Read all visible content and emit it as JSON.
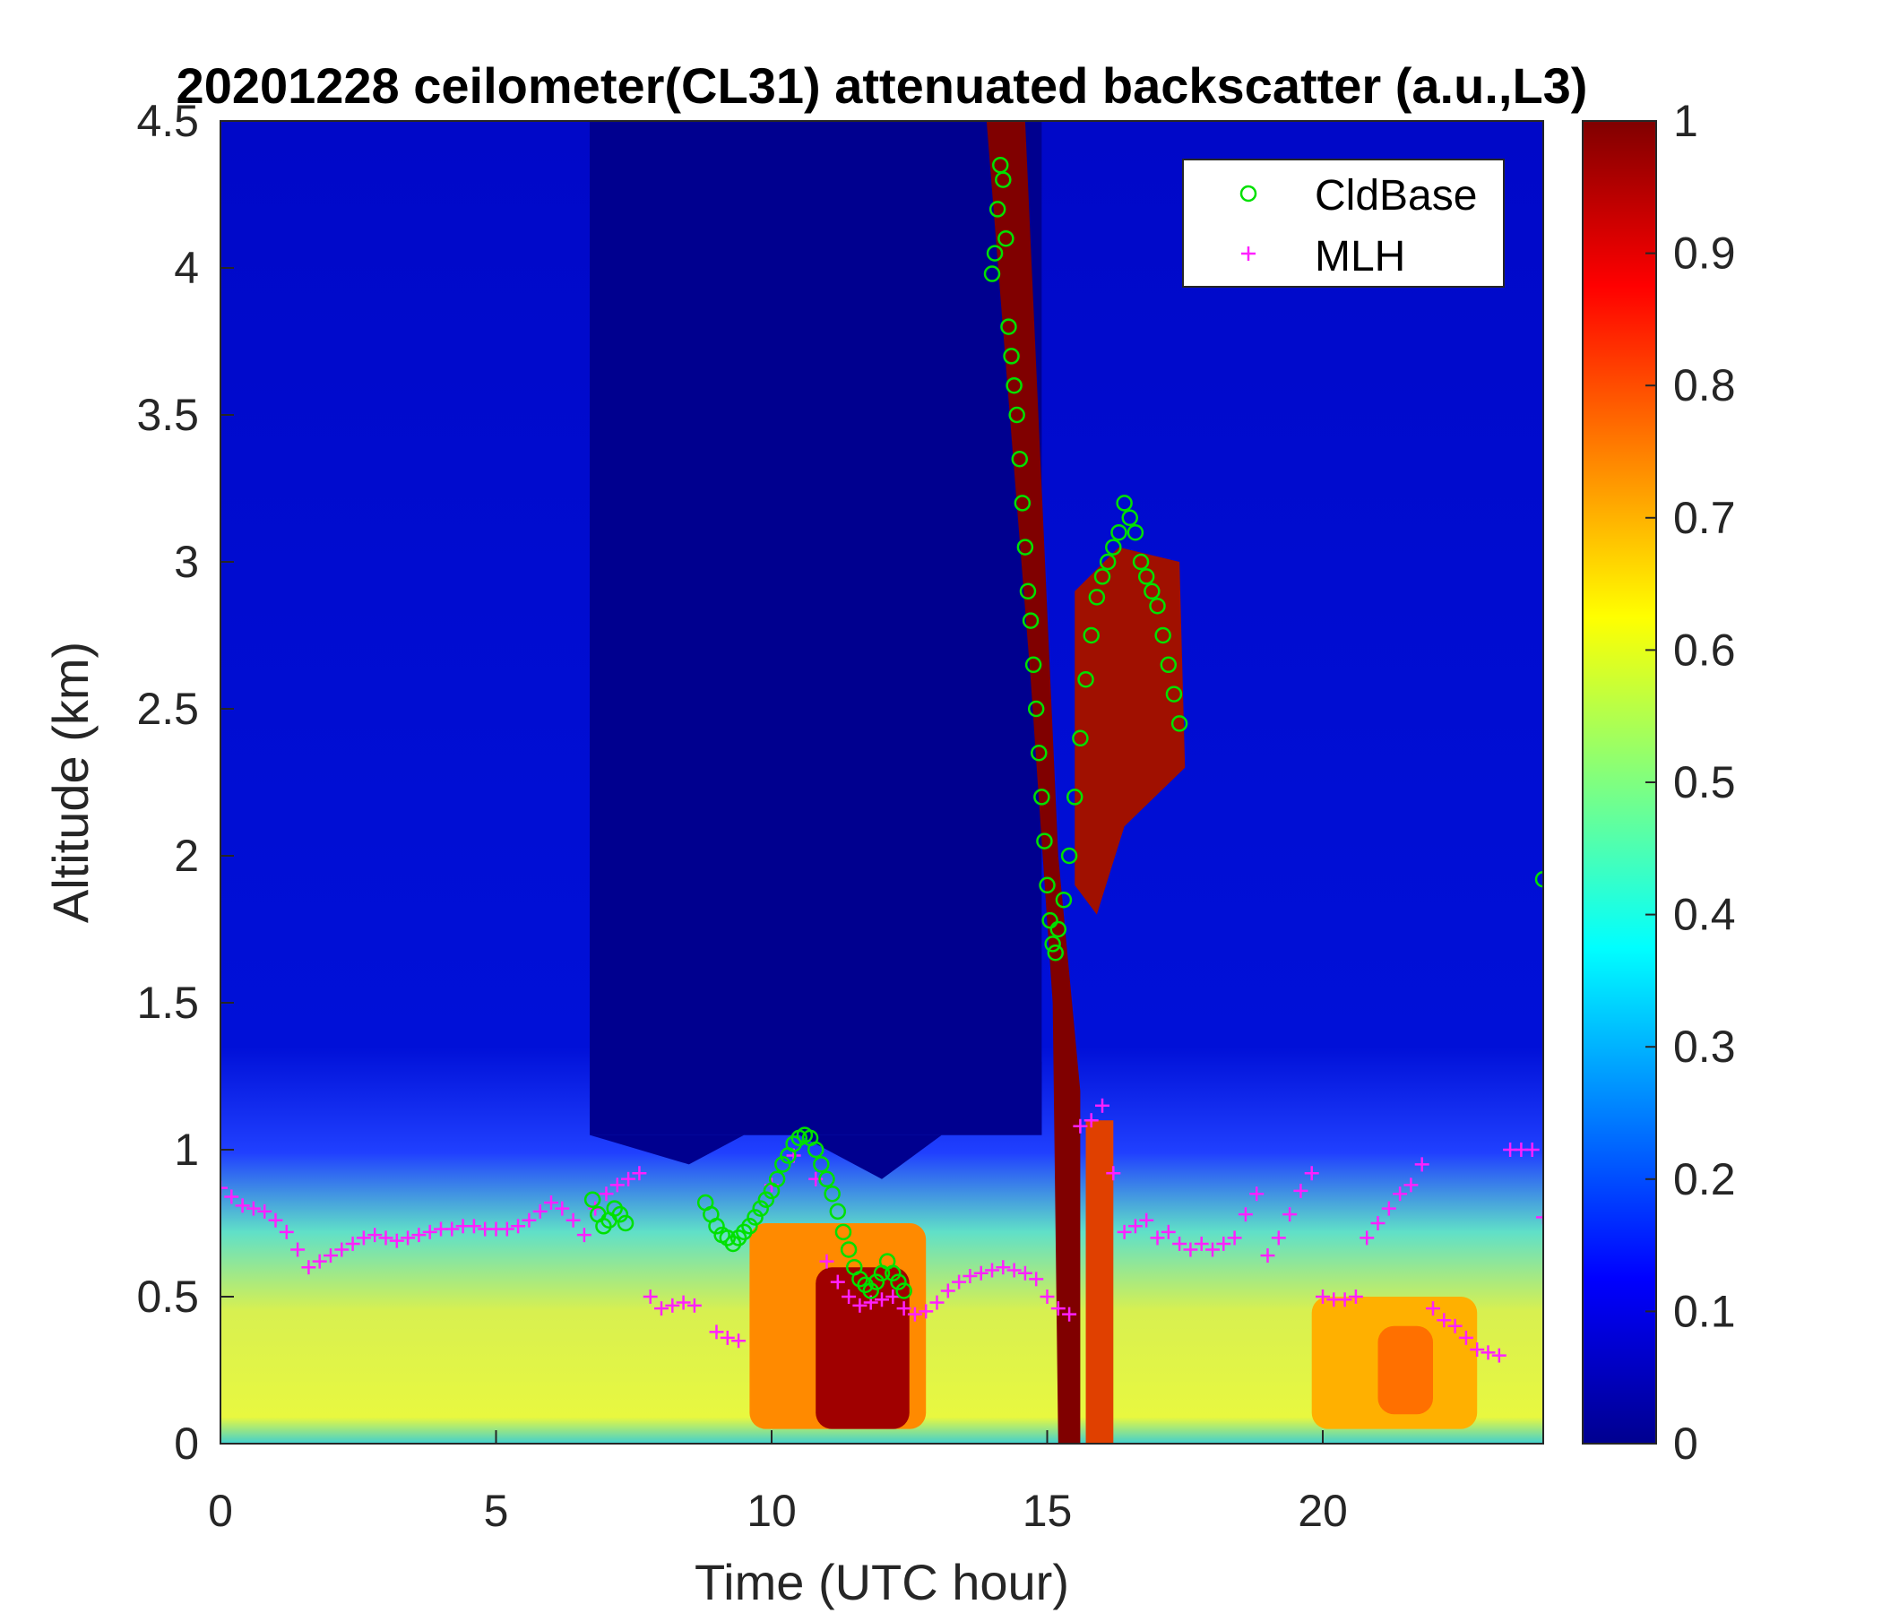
{
  "chart_data": {
    "type": "heatmap",
    "title": "20201228 ceilometer(CL31) attenuated backscatter (a.u.,L3)",
    "xlabel": "Time (UTC hour)",
    "ylabel": "Altitude (km)",
    "xlim": [
      0,
      24
    ],
    "ylim": [
      0,
      4.5
    ],
    "xticks": [
      "0",
      "5",
      "10",
      "15",
      "20"
    ],
    "yticks": [
      "0",
      "0.5",
      "1",
      "1.5",
      "2",
      "2.5",
      "3",
      "3.5",
      "4",
      "4.5"
    ],
    "colorbar": {
      "colormap": "jet",
      "clim": [
        0,
        1
      ],
      "ticks": [
        "0",
        "0.1",
        "0.2",
        "0.3",
        "0.4",
        "0.5",
        "0.6",
        "0.7",
        "0.8",
        "0.9",
        "1"
      ]
    },
    "legend": {
      "location": "top-right",
      "entries": [
        {
          "label": "CldBase",
          "marker": "circle",
          "color": "#00e000"
        },
        {
          "label": "MLH",
          "marker": "plus",
          "color": "#ff20ff"
        }
      ]
    },
    "series": [
      {
        "name": "CldBase",
        "x": [
          6.75,
          6.85,
          6.95,
          7.05,
          7.15,
          7.25,
          7.35,
          8.8,
          8.9,
          9.0,
          9.1,
          9.2,
          9.3,
          9.4,
          9.5,
          9.6,
          9.7,
          9.8,
          9.9,
          10.0,
          10.1,
          10.2,
          10.3,
          10.4,
          10.5,
          10.6,
          10.7,
          10.8,
          10.9,
          11.0,
          11.1,
          11.2,
          11.3,
          11.4,
          11.5,
          11.6,
          11.7,
          11.8,
          11.9,
          12.0,
          12.1,
          12.2,
          12.3,
          12.4,
          14.0,
          14.05,
          14.1,
          14.15,
          14.2,
          14.25,
          14.3,
          14.35,
          14.4,
          14.45,
          14.5,
          14.55,
          14.6,
          14.65,
          14.7,
          14.75,
          14.8,
          14.85,
          14.9,
          14.95,
          15.0,
          15.05,
          15.1,
          15.15,
          15.2,
          15.3,
          15.4,
          15.5,
          15.6,
          15.7,
          15.8,
          15.9,
          16.0,
          16.1,
          16.2,
          16.3,
          16.4,
          16.5,
          16.6,
          16.7,
          16.8,
          16.9,
          17.0,
          17.1,
          17.2,
          17.3,
          17.4,
          24.0
        ],
        "y": [
          0.83,
          0.78,
          0.74,
          0.76,
          0.8,
          0.78,
          0.75,
          0.82,
          0.78,
          0.74,
          0.71,
          0.7,
          0.68,
          0.7,
          0.72,
          0.74,
          0.77,
          0.8,
          0.83,
          0.86,
          0.9,
          0.95,
          0.98,
          1.02,
          1.04,
          1.05,
          1.04,
          1.0,
          0.95,
          0.9,
          0.85,
          0.79,
          0.72,
          0.66,
          0.6,
          0.56,
          0.54,
          0.52,
          0.55,
          0.58,
          0.62,
          0.58,
          0.55,
          0.52,
          3.98,
          4.05,
          4.2,
          4.35,
          4.3,
          4.1,
          3.8,
          3.7,
          3.6,
          3.5,
          3.35,
          3.2,
          3.05,
          2.9,
          2.8,
          2.65,
          2.5,
          2.35,
          2.2,
          2.05,
          1.9,
          1.78,
          1.7,
          1.67,
          1.75,
          1.85,
          2.0,
          2.2,
          2.4,
          2.6,
          2.75,
          2.88,
          2.95,
          3.0,
          3.05,
          3.1,
          3.2,
          3.15,
          3.1,
          3.0,
          2.95,
          2.9,
          2.85,
          2.75,
          2.65,
          2.55,
          2.45,
          1.92
        ]
      },
      {
        "name": "MLH",
        "x": [
          0.0,
          0.2,
          0.4,
          0.6,
          0.8,
          1.0,
          1.2,
          1.4,
          1.6,
          1.8,
          2.0,
          2.2,
          2.4,
          2.6,
          2.8,
          3.0,
          3.2,
          3.4,
          3.6,
          3.8,
          4.0,
          4.2,
          4.4,
          4.6,
          4.8,
          5.0,
          5.2,
          5.4,
          5.6,
          5.8,
          6.0,
          6.2,
          6.4,
          6.6,
          6.8,
          7.0,
          7.2,
          7.4,
          7.6,
          7.8,
          8.0,
          8.2,
          8.4,
          8.6,
          9.0,
          9.2,
          9.4,
          10.0,
          10.4,
          10.8,
          11.0,
          11.2,
          11.4,
          11.6,
          11.8,
          12.0,
          12.2,
          12.4,
          12.6,
          12.8,
          13.0,
          13.2,
          13.4,
          13.6,
          13.8,
          14.0,
          14.2,
          14.4,
          14.6,
          14.8,
          15.0,
          15.2,
          15.4,
          15.6,
          15.8,
          16.0,
          16.2,
          16.4,
          16.6,
          16.8,
          17.0,
          17.2,
          17.4,
          17.6,
          17.8,
          18.0,
          18.2,
          18.4,
          18.6,
          18.8,
          19.0,
          19.2,
          19.4,
          19.6,
          19.8,
          20.0,
          20.2,
          20.4,
          20.6,
          20.8,
          21.0,
          21.2,
          21.4,
          21.6,
          21.8,
          22.0,
          22.2,
          22.4,
          22.6,
          22.8,
          23.0,
          23.2,
          23.4,
          23.6,
          23.8,
          24.0
        ],
        "y": [
          0.87,
          0.84,
          0.81,
          0.8,
          0.79,
          0.76,
          0.72,
          0.66,
          0.6,
          0.62,
          0.64,
          0.66,
          0.68,
          0.7,
          0.71,
          0.7,
          0.69,
          0.7,
          0.71,
          0.72,
          0.73,
          0.73,
          0.74,
          0.74,
          0.73,
          0.73,
          0.73,
          0.74,
          0.76,
          0.79,
          0.82,
          0.8,
          0.76,
          0.71,
          0.8,
          0.85,
          0.88,
          0.9,
          0.92,
          0.5,
          0.46,
          0.47,
          0.48,
          0.47,
          0.38,
          0.36,
          0.35,
          0.88,
          0.98,
          0.9,
          0.62,
          0.55,
          0.5,
          0.47,
          0.48,
          0.49,
          0.5,
          0.46,
          0.44,
          0.45,
          0.48,
          0.52,
          0.55,
          0.57,
          0.58,
          0.59,
          0.6,
          0.59,
          0.58,
          0.56,
          0.5,
          0.46,
          0.44,
          1.08,
          1.1,
          1.15,
          0.92,
          0.72,
          0.74,
          0.76,
          0.7,
          0.72,
          0.68,
          0.66,
          0.68,
          0.66,
          0.68,
          0.7,
          0.78,
          0.85,
          0.64,
          0.7,
          0.78,
          0.86,
          0.92,
          0.5,
          0.49,
          0.49,
          0.5,
          0.7,
          0.75,
          0.8,
          0.85,
          0.88,
          0.95,
          0.46,
          0.42,
          0.4,
          0.36,
          0.32,
          0.31,
          0.3,
          1.0,
          1.0,
          1.0,
          0.77
        ]
      }
    ]
  }
}
